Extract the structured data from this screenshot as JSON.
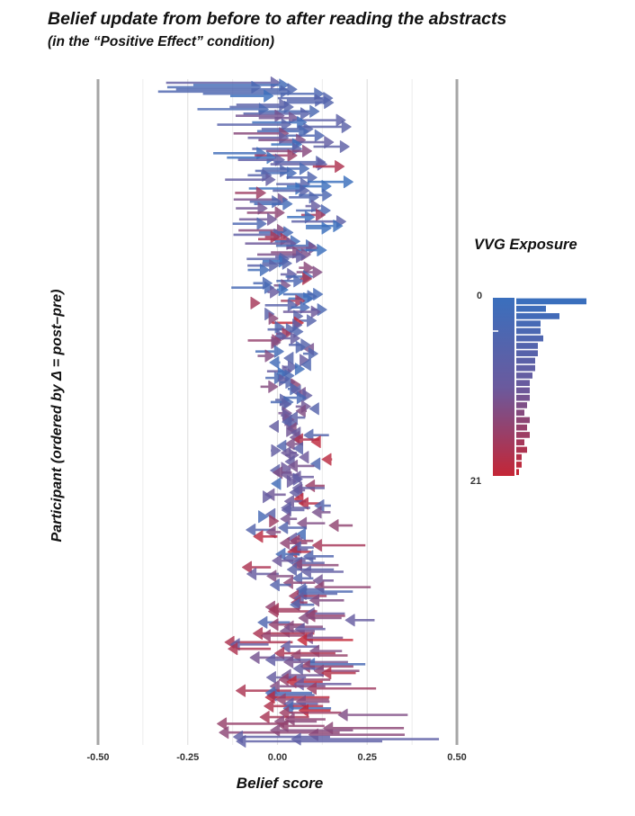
{
  "chart_data": {
    "type": "arrow-scatter",
    "title": "Belief update from before to after reading the abstracts",
    "subtitle": "(in the “Positive Effect” condition)",
    "xlabel": "Belief score",
    "ylabel": "Participant (ordered by Δ = post–pre)",
    "xlim": [
      -0.5,
      0.5
    ],
    "xticks": [
      -0.5,
      -0.25,
      0.0,
      0.25,
      0.5
    ],
    "xtick_labels": [
      "-0.50",
      "-0.25",
      "0.00",
      "0.25",
      "0.50"
    ],
    "grid": true,
    "n_participants": 300,
    "encoding": "one horizontal arrow per participant from pre-reading belief to post-reading belief; color = VVG exposure",
    "legend": {
      "title": "VVG Exposure",
      "min_label": "0",
      "max_label": "21",
      "min": 0,
      "max": 21,
      "colors": {
        "low": "#3a6fbd",
        "mid": "#6a5a9e",
        "high": "#c42636"
      },
      "histogram_counts": [
        26,
        11,
        16,
        9,
        9,
        10,
        8,
        8,
        7,
        7,
        6,
        5,
        5,
        5,
        4,
        3,
        5,
        4,
        5,
        3,
        4,
        2,
        2,
        1
      ]
    }
  }
}
